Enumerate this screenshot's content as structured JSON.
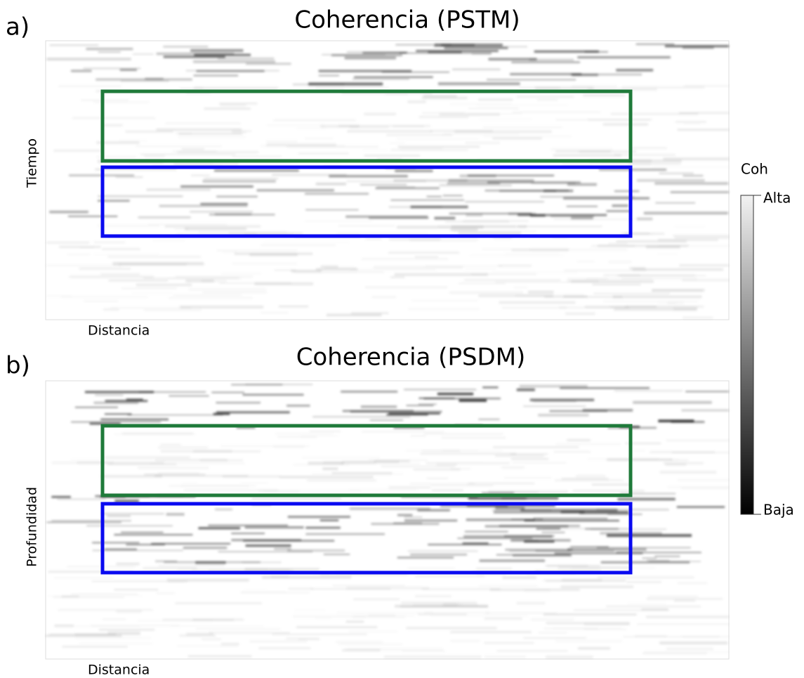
{
  "panels": [
    {
      "label": "a)",
      "title": "Coherencia (PSTM)",
      "y_label": "Tiempo",
      "x_label": "Distancia"
    },
    {
      "label": "b)",
      "title": "Coherencia (PSDM)",
      "y_label": "Profundidad",
      "x_label": "Distancia"
    }
  ],
  "colorbar": {
    "title": "Coh",
    "top_label": "Alta",
    "bottom_label": "Baja"
  }
}
